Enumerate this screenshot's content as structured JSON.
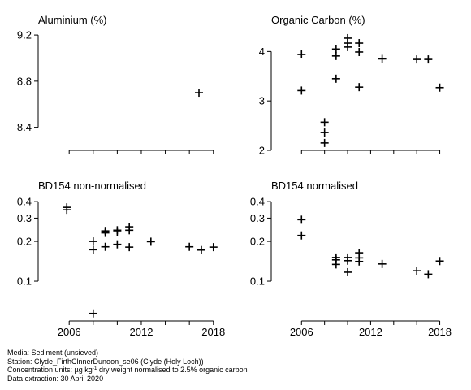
{
  "chart_data": [
    {
      "type": "scatter",
      "title": "Aluminium (%)",
      "xlim": [
        2004.5,
        2019.3
      ],
      "ylim": [
        8.2,
        9.25
      ],
      "y_scale": "linear",
      "xticks": [
        2006,
        2012,
        2018
      ],
      "show_x_tick_labels": false,
      "yticks": [
        8.4,
        8.8,
        9.2
      ],
      "ytick_labels": [
        "8.4",
        "8.8",
        "9.2"
      ],
      "marker": "plus",
      "points": [
        {
          "x": 2016.8,
          "y": 8.7
        }
      ]
    },
    {
      "type": "scatter",
      "title": "Organic Carbon (%)",
      "xlim": [
        2004.5,
        2019.3
      ],
      "ylim": [
        2.0,
        4.45
      ],
      "y_scale": "linear",
      "xticks": [
        2006,
        2012,
        2018
      ],
      "show_x_tick_labels": false,
      "yticks": [
        2,
        3,
        4
      ],
      "ytick_labels": [
        "2",
        "3",
        "4"
      ],
      "marker": "plus",
      "points": [
        {
          "x": 2006.0,
          "y": 3.94
        },
        {
          "x": 2006.0,
          "y": 3.21
        },
        {
          "x": 2008.0,
          "y": 2.57
        },
        {
          "x": 2008.0,
          "y": 2.36
        },
        {
          "x": 2008.0,
          "y": 2.15
        },
        {
          "x": 2009.0,
          "y": 4.05
        },
        {
          "x": 2009.0,
          "y": 3.91
        },
        {
          "x": 2009.0,
          "y": 3.45
        },
        {
          "x": 2010.0,
          "y": 4.27
        },
        {
          "x": 2010.0,
          "y": 4.17
        },
        {
          "x": 2010.0,
          "y": 4.09
        },
        {
          "x": 2011.0,
          "y": 4.17
        },
        {
          "x": 2011.0,
          "y": 3.99
        },
        {
          "x": 2011.0,
          "y": 3.28
        },
        {
          "x": 2013.0,
          "y": 3.85
        },
        {
          "x": 2016.0,
          "y": 3.84
        },
        {
          "x": 2017.0,
          "y": 3.84
        },
        {
          "x": 2018.0,
          "y": 3.27
        }
      ]
    },
    {
      "type": "scatter",
      "title": "BD154 non-normalised",
      "xlim": [
        2004.5,
        2019.3
      ],
      "ylim": [
        0.05,
        0.43
      ],
      "y_scale": "log",
      "xticks": [
        2006,
        2012,
        2018
      ],
      "xtick_labels": [
        "2006",
        "2012",
        "2018"
      ],
      "show_x_tick_labels": true,
      "yticks": [
        0.1,
        0.2,
        0.3,
        0.4
      ],
      "ytick_labels": [
        "0.1",
        "0.2",
        "0.3",
        "0.4"
      ],
      "marker": "plus",
      "points": [
        {
          "x": 2005.8,
          "y": 0.362
        },
        {
          "x": 2005.8,
          "y": 0.347
        },
        {
          "x": 2008.0,
          "y": 0.2
        },
        {
          "x": 2008.0,
          "y": 0.173
        },
        {
          "x": 2008.0,
          "y": 0.057
        },
        {
          "x": 2009.0,
          "y": 0.24
        },
        {
          "x": 2009.0,
          "y": 0.232
        },
        {
          "x": 2009.0,
          "y": 0.182
        },
        {
          "x": 2010.0,
          "y": 0.243
        },
        {
          "x": 2010.0,
          "y": 0.237
        },
        {
          "x": 2010.0,
          "y": 0.19
        },
        {
          "x": 2011.0,
          "y": 0.258
        },
        {
          "x": 2011.0,
          "y": 0.243
        },
        {
          "x": 2011.0,
          "y": 0.181
        },
        {
          "x": 2012.8,
          "y": 0.199
        },
        {
          "x": 2016.0,
          "y": 0.182
        },
        {
          "x": 2017.0,
          "y": 0.172
        },
        {
          "x": 2018.0,
          "y": 0.181
        }
      ]
    },
    {
      "type": "scatter",
      "title": "BD154 normalised",
      "xlim": [
        2004.5,
        2019.3
      ],
      "ylim": [
        0.05,
        0.43
      ],
      "y_scale": "log",
      "xticks": [
        2006,
        2012,
        2018
      ],
      "xtick_labels": [
        "2006",
        "2012",
        "2018"
      ],
      "show_x_tick_labels": true,
      "yticks": [
        0.1,
        0.2,
        0.3,
        0.4
      ],
      "ytick_labels": [
        "0.1",
        "0.2",
        "0.3",
        "0.4"
      ],
      "marker": "plus",
      "points": [
        {
          "x": 2006.0,
          "y": 0.292
        },
        {
          "x": 2006.0,
          "y": 0.222
        },
        {
          "x": 2009.0,
          "y": 0.151
        },
        {
          "x": 2009.0,
          "y": 0.145
        },
        {
          "x": 2009.0,
          "y": 0.134
        },
        {
          "x": 2010.0,
          "y": 0.151
        },
        {
          "x": 2010.0,
          "y": 0.143
        },
        {
          "x": 2010.0,
          "y": 0.117
        },
        {
          "x": 2011.0,
          "y": 0.164
        },
        {
          "x": 2011.0,
          "y": 0.15
        },
        {
          "x": 2011.0,
          "y": 0.141
        },
        {
          "x": 2013.0,
          "y": 0.135
        },
        {
          "x": 2016.0,
          "y": 0.12
        },
        {
          "x": 2017.0,
          "y": 0.113
        },
        {
          "x": 2018.0,
          "y": 0.142
        }
      ]
    }
  ],
  "footer": {
    "media": "Media: Sediment (unsieved)",
    "station": "Station: Clyde_FirthClnnerDunoon_se06 (Clyde (Holy Loch))",
    "units_prefix": "Concentration units: µg kg",
    "units_exponent": "-1",
    "units_suffix": " dry weight normalised to 2.5% organic carbon",
    "extraction": "Data extraction: 30 April 2020"
  }
}
